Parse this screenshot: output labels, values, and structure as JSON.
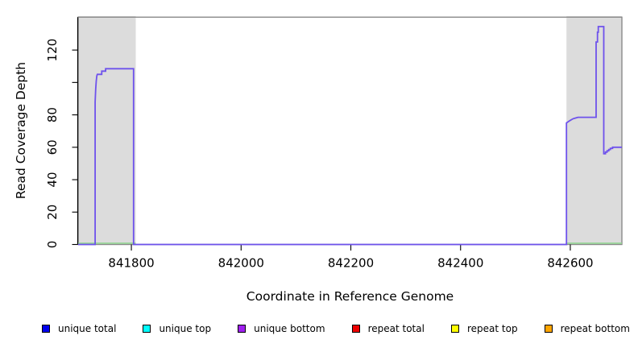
{
  "chart_data": {
    "type": "line",
    "title": "",
    "xlabel": "Coordinate in Reference Genome",
    "ylabel": "Read Coverage Depth",
    "xlim": [
      841703,
      842694
    ],
    "ylim": [
      0,
      140.3
    ],
    "grid": false,
    "legend_position": "bottom",
    "x_ticks": [
      {
        "v": 841800,
        "label": "841800"
      },
      {
        "v": 842000,
        "label": "842000"
      },
      {
        "v": 842200,
        "label": "842200"
      },
      {
        "v": 842400,
        "label": "842400"
      },
      {
        "v": 842600,
        "label": "842600"
      }
    ],
    "y_ticks": [
      {
        "v": 0,
        "label": "0"
      },
      {
        "v": 20,
        "label": "20"
      },
      {
        "v": 40,
        "label": "40"
      },
      {
        "v": 60,
        "label": "60"
      },
      {
        "v": 80,
        "label": "80"
      },
      {
        "v": 100,
        "label": ""
      },
      {
        "v": 120,
        "label": "120"
      }
    ],
    "shaded_regions": [
      {
        "x0": 841703,
        "x1": 841808,
        "color": "#DCDCDC"
      },
      {
        "x0": 842593,
        "x1": 842694,
        "color": "#DCDCDC"
      }
    ],
    "border_color": "#8A8A8A",
    "baseline_color": "#93D693",
    "baseline_segments": [
      [
        841703,
        841808
      ],
      [
        842593,
        842694
      ]
    ],
    "series": [
      {
        "name": "unique bottom coverage",
        "color": "#6E52EC",
        "points": [
          [
            841703,
            0
          ],
          [
            841734,
            0
          ],
          [
            841734,
            88
          ],
          [
            841735,
            96
          ],
          [
            841736,
            101
          ],
          [
            841737,
            104
          ],
          [
            841738,
            105
          ],
          [
            841746,
            105
          ],
          [
            841746,
            107
          ],
          [
            841753,
            107
          ],
          [
            841753,
            108.5
          ],
          [
            841804,
            108.5
          ],
          [
            841804,
            0
          ],
          [
            842593,
            0
          ],
          [
            842593,
            75
          ],
          [
            842596,
            75.7
          ],
          [
            842599,
            76.4
          ],
          [
            842602,
            77
          ],
          [
            842605,
            77.6
          ],
          [
            842609,
            78
          ],
          [
            842614,
            78.5
          ],
          [
            842647,
            78.5
          ],
          [
            842647,
            125
          ],
          [
            842649.5,
            125
          ],
          [
            842649.5,
            131
          ],
          [
            842651,
            131
          ],
          [
            842651,
            134.5
          ],
          [
            842661,
            134.5
          ],
          [
            842661,
            56
          ],
          [
            842664,
            56
          ],
          [
            842664,
            57
          ],
          [
            842667,
            57
          ],
          [
            842667,
            57.8
          ],
          [
            842670,
            57.8
          ],
          [
            842670,
            58.6
          ],
          [
            842673,
            58.6
          ],
          [
            842673,
            59.3
          ],
          [
            842677,
            59.3
          ],
          [
            842677,
            60
          ],
          [
            842694,
            60
          ]
        ]
      }
    ],
    "legend": [
      {
        "label": "unique total",
        "color": "#0000EE"
      },
      {
        "label": "unique top",
        "color": "#00FFFF"
      },
      {
        "label": "unique bottom",
        "color": "#A020F0"
      },
      {
        "label": "repeat total",
        "color": "#EE0000"
      },
      {
        "label": "repeat top",
        "color": "#FFFF00"
      },
      {
        "label": "repeat bottom",
        "color": "#FFA500"
      }
    ]
  }
}
